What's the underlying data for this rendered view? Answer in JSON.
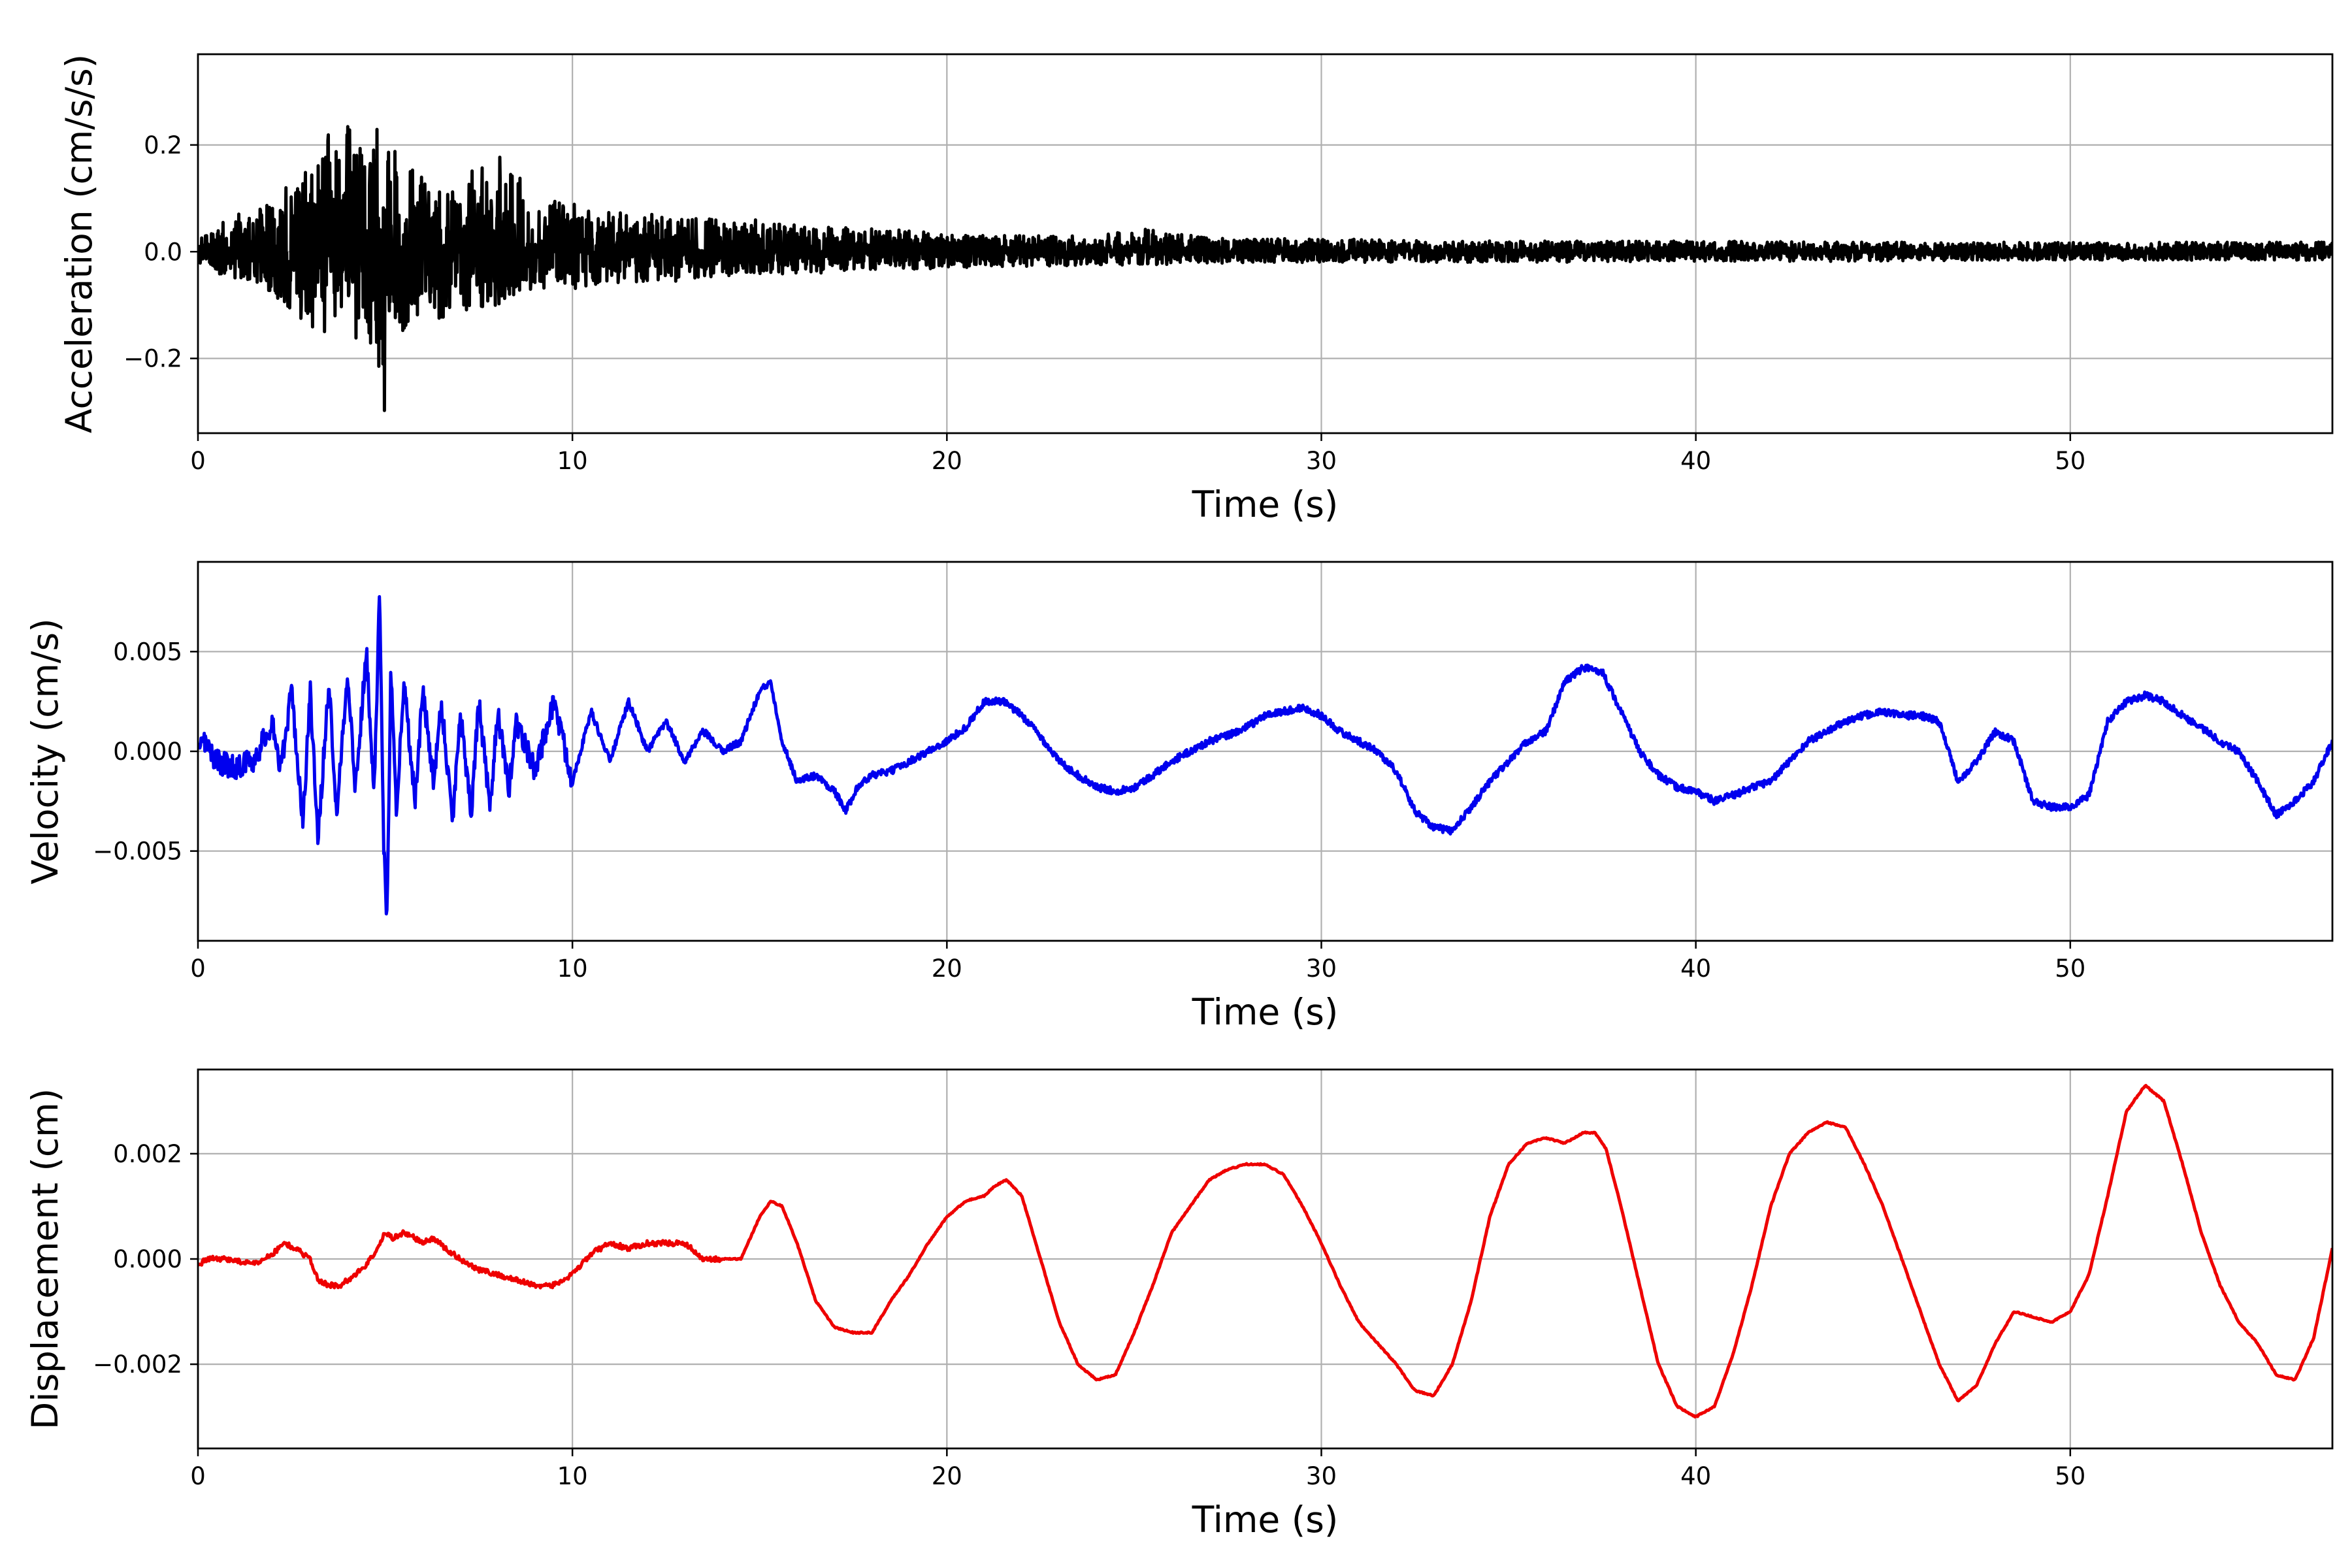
{
  "chart_data": [
    {
      "type": "line",
      "title": "",
      "xlabel": "Time (s)",
      "ylabel": "Acceleration (cm/s/s)",
      "xlim": [
        0,
        57
      ],
      "ylim": [
        -0.34,
        0.37
      ],
      "xticks": [
        0,
        10,
        20,
        30,
        40,
        50
      ],
      "xtick_labels": [
        "0",
        "10",
        "20",
        "30",
        "40",
        "50"
      ],
      "yticks": [
        -0.2,
        0.0,
        0.2
      ],
      "ytick_labels": [
        "−0.2",
        "0.0",
        "0.2"
      ],
      "grid": true,
      "color": "#000000",
      "series": [
        {
          "x": [
            0,
            0.5,
            1,
            1.5,
            2,
            2.5,
            3,
            3.3,
            3.5,
            3.8,
            4,
            4.3,
            4.5,
            4.8,
            4.95,
            5.1,
            5.3,
            5.5,
            5.8,
            6,
            6.5,
            7,
            7.5,
            8,
            8.2,
            8.5,
            9,
            9.5,
            10,
            11,
            12,
            13,
            14,
            15,
            16,
            17,
            18,
            19,
            20,
            22,
            24,
            25.5,
            27,
            30,
            33,
            36,
            40,
            44,
            48,
            52,
            57
          ],
          "y": [
            0.02,
            0.05,
            0.07,
            0.08,
            0.1,
            0.13,
            0.16,
            0.2,
            0.26,
            0.2,
            0.24,
            0.21,
            0.18,
            0.25,
            0.25,
            0.23,
            0.2,
            0.17,
            0.15,
            0.14,
            0.13,
            0.14,
            0.16,
            0.18,
            0.17,
            0.15,
            0.12,
            0.1,
            0.09,
            0.08,
            0.07,
            0.07,
            0.06,
            0.06,
            0.05,
            0.045,
            0.045,
            0.04,
            0.035,
            0.03,
            0.03,
            0.045,
            0.025,
            0.025,
            0.02,
            0.02,
            0.02,
            0.018,
            0.018,
            0.018,
            0.018
          ]
        },
        {
          "x": [
            0,
            0.5,
            1,
            1.5,
            2,
            2.5,
            3,
            3.3,
            3.5,
            3.8,
            4,
            4.3,
            4.5,
            4.8,
            4.95,
            5.1,
            5.3,
            5.5,
            5.8,
            6,
            6.5,
            7,
            7.5,
            8,
            8.2,
            8.5,
            9,
            9.5,
            10,
            11,
            12,
            13,
            14,
            15,
            16,
            17,
            18,
            19,
            20,
            22,
            24,
            25.5,
            27,
            30,
            33,
            36,
            40,
            44,
            48,
            52,
            57
          ],
          "y": [
            -0.02,
            -0.04,
            -0.05,
            -0.06,
            -0.08,
            -0.11,
            -0.15,
            -0.17,
            -0.15,
            -0.14,
            -0.13,
            -0.18,
            -0.15,
            -0.22,
            -0.34,
            -0.21,
            -0.17,
            -0.15,
            -0.14,
            -0.12,
            -0.13,
            -0.11,
            -0.12,
            -0.1,
            -0.1,
            -0.09,
            -0.08,
            -0.07,
            -0.07,
            -0.06,
            -0.06,
            -0.055,
            -0.05,
            -0.045,
            -0.04,
            -0.04,
            -0.035,
            -0.035,
            -0.03,
            -0.028,
            -0.025,
            -0.025,
            -0.022,
            -0.02,
            -0.02,
            -0.02,
            -0.018,
            -0.018,
            -0.016,
            -0.016,
            -0.016
          ]
        }
      ]
    },
    {
      "type": "line",
      "title": "",
      "xlabel": "Time (s)",
      "ylabel": "Velocity (cm/s)",
      "xlim": [
        0,
        57
      ],
      "ylim": [
        -0.0095,
        0.0095
      ],
      "xticks": [
        0,
        10,
        20,
        30,
        40,
        50
      ],
      "xtick_labels": [
        "0",
        "10",
        "20",
        "30",
        "40",
        "50"
      ],
      "yticks": [
        -0.005,
        0.0,
        0.005
      ],
      "ytick_labels": [
        "−0.005",
        "0.000",
        "0.005"
      ],
      "grid": true,
      "color": "#0000ee",
      "series": [
        {
          "x": [
            0,
            0.3,
            0.6,
            1,
            1.5,
            2,
            2.2,
            2.5,
            2.8,
            3,
            3.2,
            3.5,
            3.7,
            4,
            4.2,
            4.5,
            4.7,
            4.85,
            4.95,
            5.05,
            5.15,
            5.3,
            5.5,
            5.8,
            6,
            6.3,
            6.5,
            6.8,
            7,
            7.3,
            7.5,
            7.8,
            8,
            8.3,
            8.5,
            9,
            9.5,
            10,
            10.5,
            11,
            11.5,
            12,
            12.5,
            13,
            13.5,
            14,
            14.5,
            15,
            15.3,
            15.6,
            16,
            16.5,
            17,
            17.3,
            17.6,
            18,
            18.5,
            19,
            19.5,
            20,
            20.5,
            21,
            21.5,
            22,
            22.3,
            22.6,
            23,
            23.5,
            24,
            24.5,
            25,
            25.5,
            26,
            26.5,
            27,
            27.5,
            28,
            28.5,
            29,
            29.5,
            30,
            30.5,
            31,
            31.5,
            32,
            32.5,
            33,
            33.5,
            34,
            34.5,
            35,
            35.5,
            36,
            36.5,
            37,
            37.5,
            38,
            38.5,
            39,
            39.5,
            40,
            40.5,
            41,
            41.5,
            42,
            42.5,
            43,
            43.5,
            44,
            44.5,
            45,
            45.5,
            46,
            46.5,
            47,
            47.5,
            48,
            48.5,
            49,
            49.5,
            50,
            50.5,
            51,
            51.5,
            52,
            52.5,
            53,
            53.5,
            54,
            54.5,
            55,
            55.5,
            56,
            56.5,
            57
          ],
          "y": [
            0.0008,
            0.0,
            -0.0006,
            -0.0008,
            -0.0004,
            0.0015,
            -0.001,
            0.003,
            -0.0035,
            0.003,
            -0.0045,
            0.0035,
            -0.003,
            0.004,
            -0.002,
            0.005,
            -0.002,
            0.0078,
            -0.004,
            -0.0087,
            0.0045,
            -0.003,
            0.0035,
            -0.0025,
            0.003,
            -0.0015,
            0.0025,
            -0.0035,
            0.002,
            -0.003,
            0.0025,
            -0.003,
            0.002,
            -0.002,
            0.0015,
            -0.001,
            0.0025,
            -0.0015,
            0.002,
            -0.0005,
            0.0025,
            0.0,
            0.0015,
            -0.0005,
            0.001,
            0.0,
            0.0005,
            0.003,
            0.0035,
            0.0005,
            -0.0015,
            -0.0012,
            -0.002,
            -0.003,
            -0.0018,
            -0.0012,
            -0.001,
            -0.0005,
            0.0,
            0.0005,
            0.0012,
            0.0025,
            0.0025,
            0.0018,
            0.0012,
            0.0005,
            -0.0005,
            -0.0012,
            -0.0018,
            -0.002,
            -0.0018,
            -0.0012,
            -0.0005,
            0.0,
            0.0005,
            0.0008,
            0.0012,
            0.0018,
            0.002,
            0.0022,
            0.0018,
            0.001,
            0.0005,
            0.0,
            -0.001,
            -0.003,
            -0.0038,
            -0.004,
            -0.0028,
            -0.0015,
            -0.0005,
            0.0005,
            0.001,
            0.0035,
            0.0042,
            0.004,
            0.002,
            0.0,
            -0.0012,
            -0.0018,
            -0.002,
            -0.0025,
            -0.0022,
            -0.0018,
            -0.0015,
            -0.0005,
            0.0005,
            0.001,
            0.0015,
            0.0018,
            0.002,
            0.0018,
            0.0018,
            0.0015,
            -0.0015,
            -0.0005,
            0.001,
            0.0005,
            -0.0025,
            -0.0028,
            -0.0028,
            -0.0022,
            0.0015,
            0.0025,
            0.0028,
            0.0025,
            0.0018,
            0.0012,
            0.0005,
            0.0,
            -0.0015,
            -0.0032,
            -0.0025,
            -0.0015,
            0.0005
          ]
        }
      ]
    },
    {
      "type": "line",
      "title": "",
      "xlabel": "Time (s)",
      "ylabel": "Displacement (cm)",
      "xlim": [
        0,
        57
      ],
      "ylim": [
        -0.0036,
        0.0036
      ],
      "xticks": [
        0,
        10,
        20,
        30,
        40,
        50
      ],
      "xtick_labels": [
        "0",
        "10",
        "20",
        "30",
        "40",
        "50"
      ],
      "yticks": [
        -0.002,
        0.0,
        0.002
      ],
      "ytick_labels": [
        "−0.002",
        "0.000",
        "0.002"
      ],
      "grid": true,
      "color": "#ee0000",
      "series": [
        {
          "x": [
            0,
            0.3,
            0.8,
            1.5,
            2,
            2.3,
            2.6,
            3,
            3.2,
            3.5,
            3.8,
            4.2,
            4.5,
            4.8,
            5,
            5.2,
            5.5,
            5.8,
            6,
            6.3,
            6.6,
            7,
            7.5,
            8,
            8.5,
            9,
            9.5,
            10,
            10.5,
            11,
            11.5,
            12,
            12.5,
            13,
            13.5,
            14,
            14.5,
            15,
            15.3,
            15.6,
            16,
            16.5,
            17,
            17.5,
            18,
            18.5,
            19,
            19.5,
            20,
            20.5,
            21,
            21.3,
            21.6,
            22,
            22.5,
            23,
            23.5,
            24,
            24.5,
            25,
            25.5,
            26,
            26.5,
            27,
            27.5,
            28,
            28.5,
            29,
            29.5,
            30,
            30.5,
            31,
            31.5,
            32,
            32.5,
            33,
            33.5,
            34,
            34.5,
            35,
            35.5,
            36,
            36.5,
            37,
            37.3,
            37.6,
            38,
            38.5,
            39,
            39.5,
            40,
            40.5,
            41,
            41.5,
            42,
            42.5,
            43,
            43.5,
            44,
            44.5,
            45,
            45.5,
            46,
            46.5,
            47,
            47.5,
            48,
            48.5,
            49,
            49.5,
            50,
            50.5,
            51,
            51.5,
            52,
            52.5,
            53,
            53.5,
            54,
            54.5,
            55,
            55.5,
            56,
            56.5,
            57
          ],
          "y": [
            -0.0001,
            0.0,
            0.0,
            -0.0001,
            0.0001,
            0.0003,
            0.0002,
            0.0,
            -0.0004,
            -0.0005,
            -0.0005,
            -0.0003,
            -0.0001,
            0.0002,
            0.0005,
            0.0004,
            0.0005,
            0.0004,
            0.0003,
            0.0004,
            0.0002,
            0.0,
            -0.0002,
            -0.0003,
            -0.0004,
            -0.0005,
            -0.0005,
            -0.0003,
            0.0001,
            0.0003,
            0.0002,
            0.0003,
            0.0003,
            0.0003,
            0.0,
            0.0,
            0.0,
            0.0008,
            0.0011,
            0.001,
            0.0003,
            -0.0008,
            -0.0013,
            -0.0014,
            -0.0014,
            -0.0008,
            -0.0003,
            0.0003,
            0.0008,
            0.0011,
            0.0012,
            0.0014,
            0.0015,
            0.0012,
            0.0,
            -0.0012,
            -0.002,
            -0.0023,
            -0.0022,
            -0.0014,
            -0.0005,
            0.0005,
            0.001,
            0.0015,
            0.0017,
            0.0018,
            0.0018,
            0.0016,
            0.001,
            0.0003,
            -0.0005,
            -0.0012,
            -0.0016,
            -0.002,
            -0.0025,
            -0.0026,
            -0.002,
            -0.0008,
            0.0008,
            0.0018,
            0.0022,
            0.0023,
            0.0022,
            0.0024,
            0.0024,
            0.0021,
            0.001,
            -0.0005,
            -0.002,
            -0.0028,
            -0.003,
            -0.0028,
            -0.0018,
            -0.0005,
            0.001,
            0.002,
            0.0024,
            0.0026,
            0.0025,
            0.0018,
            0.001,
            0.0,
            -0.001,
            -0.002,
            -0.0027,
            -0.0024,
            -0.0016,
            -0.001,
            -0.0011,
            -0.0012,
            -0.001,
            -0.0003,
            0.0012,
            0.0028,
            0.0033,
            0.003,
            0.0018,
            0.0005,
            -0.0005,
            -0.0012,
            -0.0016,
            -0.0022,
            -0.0023,
            -0.0015,
            0.0002
          ]
        }
      ]
    }
  ]
}
